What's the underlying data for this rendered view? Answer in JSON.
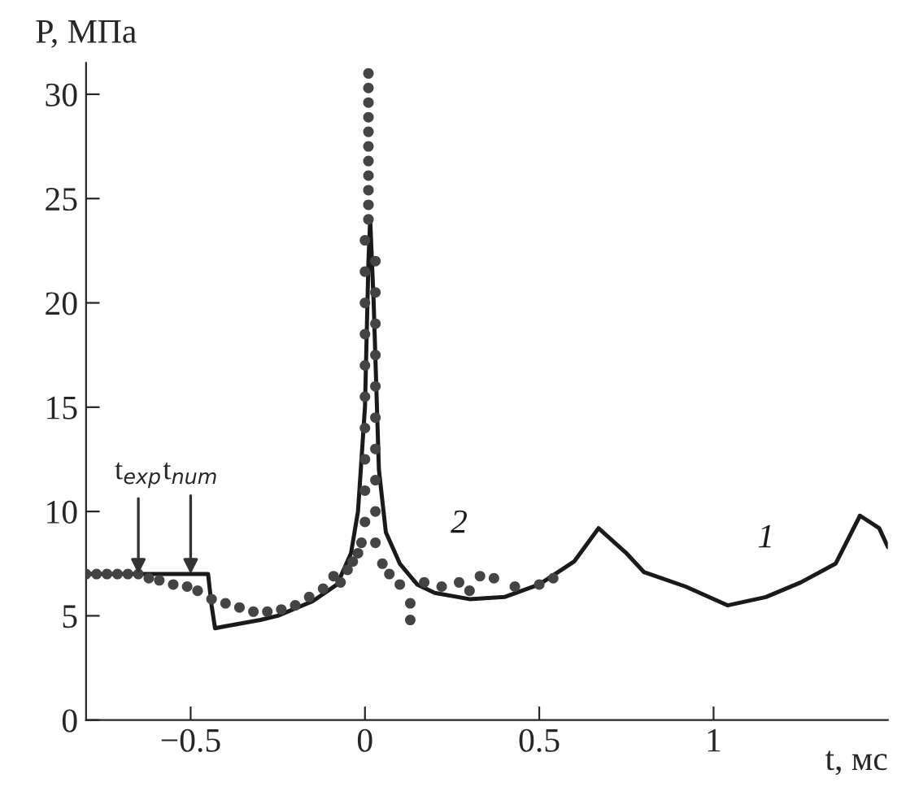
{
  "chart_data": {
    "type": "line",
    "xlabel": "t, мс",
    "ylabel": "P, МПа",
    "xlim": [
      -0.8,
      1.5
    ],
    "ylim": [
      0,
      31.5
    ],
    "xticks": [
      {
        "value": -0.5,
        "label": "−0.5"
      },
      0,
      0.5,
      1
    ],
    "yticks": [
      0,
      5,
      10,
      15,
      20,
      25,
      30
    ],
    "grid": false,
    "legend": false,
    "series": [
      {
        "name": "1",
        "color": "#1a1a1a",
        "line_style": "solid",
        "marker": "none",
        "x": [
          -0.8,
          -0.6,
          -0.45,
          -0.44,
          -0.43,
          -0.4,
          -0.3,
          -0.25,
          -0.15,
          -0.08,
          -0.04,
          -0.02,
          0.0,
          0.01,
          0.015,
          0.025,
          0.04,
          0.06,
          0.1,
          0.15,
          0.2,
          0.3,
          0.4,
          0.5,
          0.6,
          0.67,
          0.75,
          0.8,
          0.92,
          1.04,
          1.15,
          1.25,
          1.35,
          1.42,
          1.475,
          1.5
        ],
        "values": [
          7.0,
          7.0,
          7.0,
          5.5,
          4.4,
          4.5,
          4.8,
          5.0,
          5.7,
          6.5,
          8.0,
          10.0,
          15.0,
          22.0,
          24.0,
          20.0,
          12.0,
          9.0,
          7.5,
          6.5,
          6.1,
          5.8,
          5.9,
          6.5,
          7.6,
          9.2,
          8.0,
          7.1,
          6.4,
          5.5,
          5.9,
          6.6,
          7.5,
          9.8,
          9.2,
          8.3
        ]
      },
      {
        "name": "2",
        "type": "scatter",
        "color": "#444444",
        "marker": "circle",
        "x": [
          -0.8,
          -0.77,
          -0.74,
          -0.71,
          -0.68,
          -0.65,
          -0.62,
          -0.59,
          -0.55,
          -0.51,
          -0.48,
          -0.44,
          -0.4,
          -0.36,
          -0.32,
          -0.28,
          -0.24,
          -0.2,
          -0.16,
          -0.12,
          -0.09,
          -0.07,
          -0.05,
          -0.035,
          -0.02,
          -0.01,
          0.0,
          0.0,
          0.0,
          0.0,
          0.0,
          0.0,
          0.0,
          0.0,
          0.0,
          0.0,
          0.01,
          0.01,
          0.01,
          0.01,
          0.01,
          0.01,
          0.01,
          0.01,
          0.01,
          0.01,
          0.01,
          0.03,
          0.03,
          0.03,
          0.03,
          0.03,
          0.03,
          0.03,
          0.03,
          0.03,
          0.03,
          0.05,
          0.07,
          0.1,
          0.13,
          0.13,
          0.17,
          0.22,
          0.27,
          0.3,
          0.33,
          0.37,
          0.43,
          0.5,
          0.54
        ],
        "values": [
          7.0,
          7.0,
          7.0,
          7.0,
          7.0,
          7.0,
          6.8,
          6.7,
          6.5,
          6.4,
          6.2,
          5.8,
          5.6,
          5.4,
          5.2,
          5.2,
          5.3,
          5.5,
          5.9,
          6.3,
          6.9,
          6.6,
          7.2,
          7.6,
          8.0,
          8.5,
          9.5,
          11.0,
          12.5,
          14.0,
          15.5,
          17.0,
          18.5,
          20.0,
          21.5,
          23.0,
          24.0,
          24.7,
          25.4,
          26.1,
          26.8,
          27.5,
          28.2,
          28.9,
          29.6,
          30.3,
          31.0,
          22.0,
          20.5,
          19.0,
          17.5,
          16.0,
          14.5,
          13.0,
          11.5,
          10.0,
          8.5,
          7.5,
          7.0,
          6.5,
          5.6,
          4.8,
          6.6,
          6.4,
          6.6,
          6.2,
          6.9,
          6.8,
          6.4,
          6.5,
          6.8
        ]
      }
    ],
    "annotations": [
      {
        "text": "t$_{exp}$",
        "x": -0.65,
        "y": 7.0
      },
      {
        "text": "t$_{num}$",
        "x": -0.5,
        "y": 7.0
      }
    ]
  }
}
